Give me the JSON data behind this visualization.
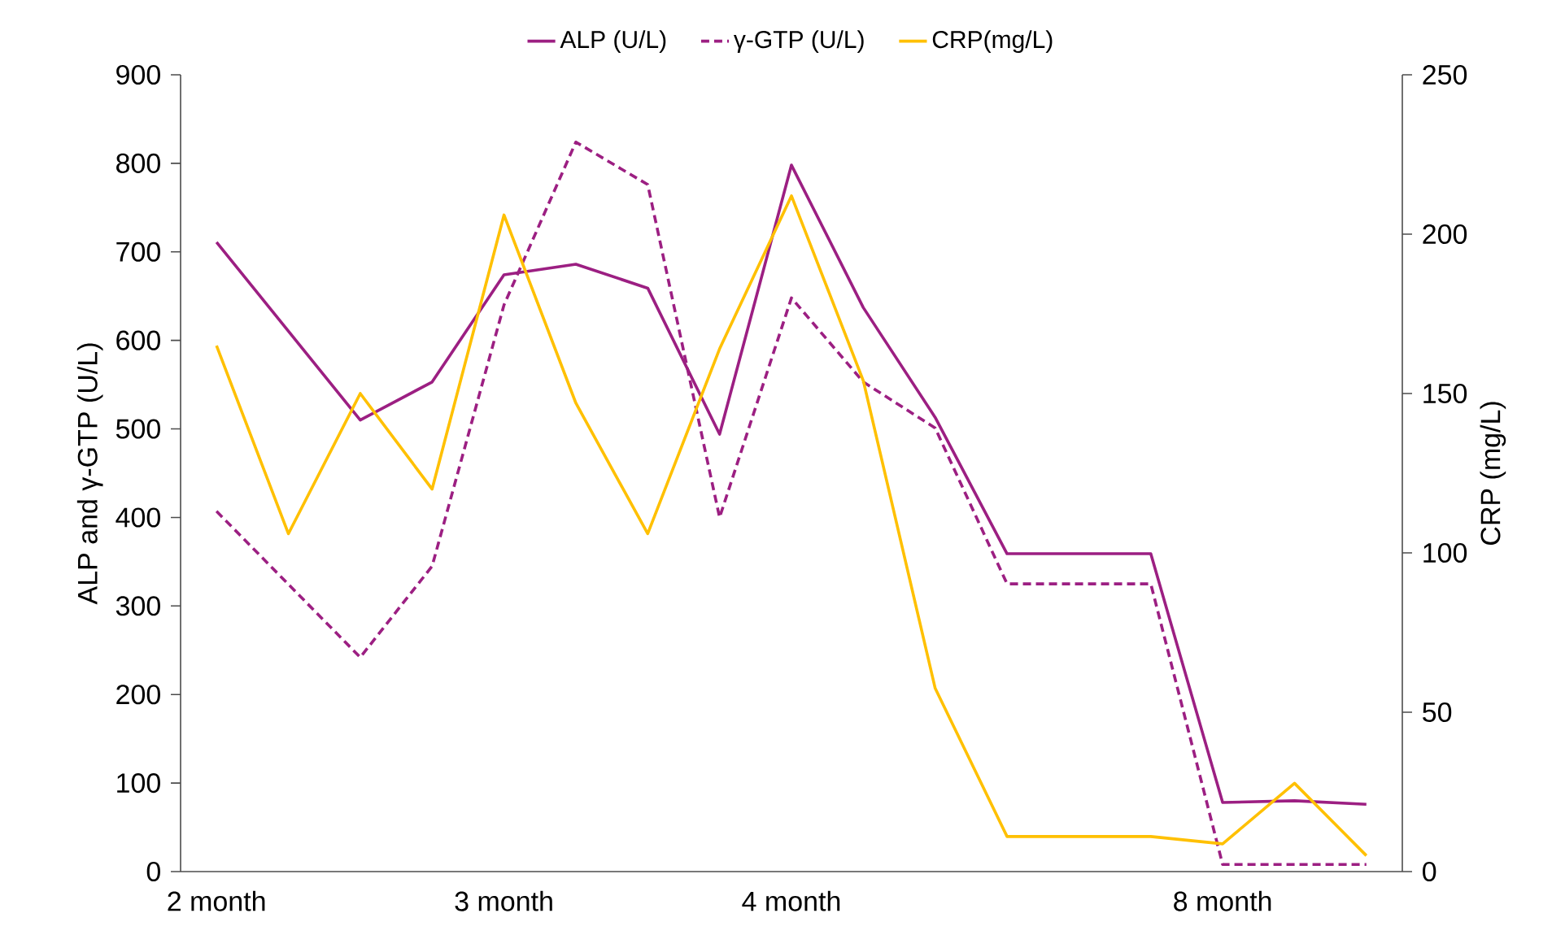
{
  "chart_data": {
    "type": "line",
    "ylabel": "ALP and γ-GTP (U/L)",
    "y2label": "CRP (mg/L)",
    "categories": [
      "2 month",
      null,
      null,
      null,
      "3 month",
      null,
      null,
      null,
      "4 month",
      null,
      null,
      null,
      null,
      null,
      "8 month",
      null,
      null
    ],
    "ylim": [
      0,
      900
    ],
    "yticks": [
      0,
      100,
      200,
      300,
      400,
      500,
      600,
      700,
      800,
      900
    ],
    "y2lim": [
      0,
      250
    ],
    "y2ticks": [
      0,
      50,
      100,
      150,
      200,
      250
    ],
    "legend": "top",
    "series": [
      {
        "name": "ALP (U/L)",
        "color": "#9c1f82",
        "line_style": "solid",
        "values": [
          711,
          null,
          510,
          553,
          674,
          686,
          659,
          494,
          798,
          637,
          513,
          359,
          null,
          359,
          78,
          80,
          76
        ]
      },
      {
        "name": "γ-GTP (U/L)",
        "color": "#9c1f82",
        "line_style": "dashed",
        "values": [
          407,
          null,
          242,
          345,
          640,
          824,
          776,
          400,
          648,
          553,
          501,
          325,
          null,
          325,
          8,
          8,
          8
        ]
      },
      {
        "name": "CRP(mg/L)",
        "color": "#ffc000",
        "line_style": "solid",
        "axis": "y2",
        "values": [
          165,
          106,
          150,
          120,
          206,
          147,
          106,
          164,
          212,
          154,
          57.5,
          11,
          null,
          11,
          8.7,
          27.7,
          5
        ]
      }
    ]
  }
}
